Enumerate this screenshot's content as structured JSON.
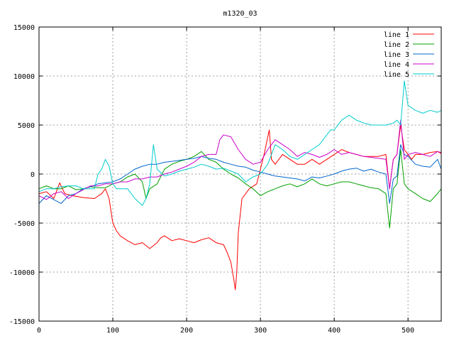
{
  "chart_data": {
    "type": "line",
    "title": "m1320_03",
    "xlabel": "",
    "ylabel": "",
    "xlim": [
      0,
      545
    ],
    "ylim": [
      -15000,
      15000
    ],
    "xticks": [
      0,
      100,
      200,
      300,
      400,
      500
    ],
    "yticks": [
      -15000,
      -10000,
      -5000,
      0,
      5000,
      10000,
      15000
    ],
    "grid": true,
    "legend_position": "top-right",
    "series": [
      {
        "name": "line 1",
        "color": "#ff0000",
        "x": [
          0,
          10,
          20,
          25,
          28,
          35,
          45,
          60,
          75,
          85,
          90,
          95,
          100,
          105,
          110,
          120,
          130,
          140,
          150,
          160,
          165,
          170,
          180,
          190,
          200,
          210,
          220,
          230,
          240,
          250,
          255,
          260,
          264,
          266,
          268,
          270,
          275,
          285,
          295,
          300,
          305,
          312,
          315,
          320,
          330,
          340,
          350,
          360,
          370,
          380,
          390,
          400,
          410,
          420,
          430,
          440,
          450,
          460,
          470,
          475,
          480,
          485,
          490,
          495,
          500,
          505,
          510,
          520,
          530,
          540,
          545
        ],
        "values": [
          -2000,
          -1800,
          -2500,
          -1500,
          -900,
          -2000,
          -2200,
          -2400,
          -2500,
          -2000,
          -1500,
          -2500,
          -5000,
          -5800,
          -6300,
          -6800,
          -7200,
          -7000,
          -7600,
          -7000,
          -6500,
          -6300,
          -6800,
          -6600,
          -6800,
          -7000,
          -6700,
          -6500,
          -7000,
          -7200,
          -8000,
          -9000,
          -10800,
          -11800,
          -10000,
          -6000,
          -2500,
          -1500,
          -1000,
          500,
          2000,
          4500,
          1500,
          1000,
          2000,
          1500,
          1000,
          1000,
          1500,
          1000,
          1500,
          2000,
          2500,
          2200,
          2000,
          1800,
          1800,
          1800,
          2000,
          -1500,
          1500,
          2000,
          5000,
          2500,
          2000,
          1500,
          2000,
          2000,
          2200,
          2300,
          2100
        ]
      },
      {
        "name": "line 2",
        "color": "#00a000",
        "x": [
          0,
          10,
          20,
          30,
          40,
          50,
          60,
          70,
          80,
          90,
          100,
          110,
          120,
          130,
          140,
          145,
          150,
          160,
          170,
          180,
          190,
          200,
          210,
          220,
          230,
          240,
          250,
          260,
          270,
          280,
          290,
          300,
          310,
          320,
          330,
          340,
          350,
          360,
          370,
          380,
          390,
          400,
          410,
          420,
          430,
          440,
          450,
          460,
          470,
          475,
          480,
          485,
          490,
          495,
          500,
          510,
          520,
          530,
          540,
          545
        ],
        "values": [
          -1500,
          -1200,
          -1500,
          -1500,
          -1200,
          -1600,
          -1500,
          -1300,
          -1400,
          -1400,
          -1000,
          -800,
          -300,
          0,
          -800,
          -2500,
          -1500,
          -1000,
          500,
          1000,
          1300,
          1500,
          1800,
          2300,
          1500,
          1200,
          500,
          0,
          -400,
          -1000,
          -1500,
          -2200,
          -1800,
          -1500,
          -1200,
          -1000,
          -1300,
          -1000,
          -500,
          -1000,
          -1200,
          -1000,
          -800,
          -800,
          -1000,
          -1200,
          -1400,
          -1500,
          -2000,
          -5500,
          -1500,
          -1000,
          2500,
          -1000,
          -1500,
          -2000,
          -2500,
          -2800,
          -2000,
          -1500
        ]
      },
      {
        "name": "line 3",
        "color": "#0066cc",
        "x": [
          0,
          10,
          20,
          30,
          40,
          50,
          60,
          70,
          80,
          90,
          100,
          110,
          120,
          130,
          140,
          150,
          160,
          170,
          180,
          190,
          200,
          210,
          220,
          230,
          240,
          250,
          260,
          270,
          280,
          290,
          300,
          310,
          320,
          330,
          340,
          350,
          360,
          370,
          380,
          390,
          400,
          410,
          420,
          430,
          440,
          450,
          460,
          470,
          475,
          480,
          485,
          490,
          495,
          500,
          510,
          520,
          530,
          540,
          545
        ],
        "values": [
          -3000,
          -2200,
          -2600,
          -3000,
          -2200,
          -2000,
          -1500,
          -1300,
          -1000,
          -900,
          -800,
          -500,
          0,
          500,
          800,
          1000,
          1000,
          1200,
          1300,
          1400,
          1500,
          1600,
          1800,
          1600,
          1500,
          1200,
          1000,
          800,
          700,
          400,
          200,
          0,
          -200,
          -300,
          -400,
          -500,
          -700,
          -300,
          -400,
          -200,
          0,
          300,
          500,
          600,
          300,
          500,
          200,
          0,
          -3000,
          -500,
          -200,
          3000,
          2000,
          1800,
          1000,
          800,
          700,
          1500,
          500
        ]
      },
      {
        "name": "line 4",
        "color": "#cc00cc",
        "x": [
          0,
          10,
          20,
          30,
          40,
          50,
          60,
          70,
          80,
          90,
          100,
          110,
          120,
          130,
          140,
          150,
          160,
          170,
          180,
          190,
          200,
          210,
          220,
          230,
          240,
          245,
          250,
          260,
          270,
          280,
          290,
          300,
          310,
          320,
          330,
          340,
          350,
          360,
          370,
          380,
          390,
          400,
          410,
          420,
          430,
          440,
          450,
          460,
          470,
          475,
          480,
          485,
          490,
          495,
          500,
          510,
          520,
          530,
          540,
          545
        ],
        "values": [
          -2200,
          -2600,
          -2000,
          -1800,
          -2500,
          -2000,
          -1600,
          -1200,
          -1200,
          -1000,
          -1000,
          -800,
          -800,
          -500,
          -500,
          -300,
          -300,
          0,
          200,
          500,
          800,
          1200,
          1800,
          2000,
          2000,
          3500,
          4000,
          3800,
          2500,
          1500,
          1000,
          1200,
          2500,
          3500,
          3000,
          2500,
          1800,
          2200,
          2000,
          1700,
          2000,
          2500,
          2000,
          2200,
          2000,
          1800,
          1700,
          1600,
          1500,
          -1500,
          1500,
          2000,
          5500,
          1500,
          2000,
          2200,
          2000,
          1800,
          2300,
          2200
        ]
      },
      {
        "name": "line 5",
        "color": "#00cccc",
        "x": [
          0,
          10,
          20,
          30,
          40,
          50,
          60,
          70,
          75,
          80,
          85,
          90,
          95,
          100,
          105,
          110,
          120,
          130,
          140,
          145,
          150,
          155,
          160,
          170,
          180,
          190,
          200,
          210,
          220,
          230,
          240,
          250,
          260,
          270,
          280,
          290,
          300,
          310,
          320,
          330,
          340,
          350,
          360,
          370,
          380,
          390,
          395,
          400,
          410,
          420,
          430,
          440,
          450,
          460,
          470,
          480,
          485,
          490,
          495,
          500,
          510,
          520,
          530,
          540,
          545
        ],
        "values": [
          -1800,
          -1500,
          -1500,
          -1300,
          -1200,
          -1200,
          -1500,
          -1500,
          -1500,
          0,
          500,
          1500,
          800,
          -1000,
          -1500,
          -1500,
          -1500,
          -2500,
          -3200,
          -2500,
          -1000,
          3000,
          500,
          -200,
          0,
          300,
          500,
          700,
          1000,
          800,
          500,
          600,
          300,
          0,
          -800,
          -300,
          0,
          1000,
          3000,
          2500,
          1800,
          1500,
          2000,
          2500,
          3000,
          4000,
          4500,
          4500,
          5500,
          6000,
          5500,
          5200,
          5000,
          5000,
          5000,
          5200,
          5500,
          5000,
          9500,
          7000,
          6500,
          6200,
          6500,
          6300,
          6500
        ]
      }
    ]
  }
}
